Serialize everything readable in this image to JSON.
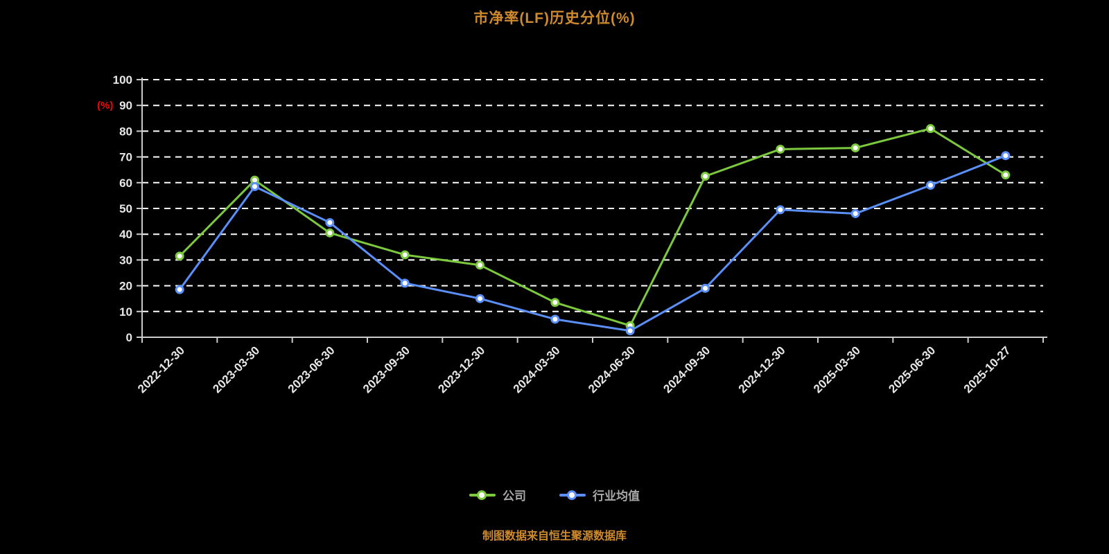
{
  "title": "市净率(LF)历史分位(%)",
  "y_axis_unit": "(%)",
  "caption": "制图数据来自恒生聚源数据库",
  "colors": {
    "background": "#000000",
    "title": "#CE8A2D",
    "caption": "#CE8A2D",
    "axis": "#CCCCCC",
    "tick_label": "#E8E8E8",
    "grid": "#FFFFFF",
    "unit_label": "#FF0000",
    "legend_text": "#A8A8A8",
    "series_company": "#7CC93F",
    "series_industry": "#5B8FF9"
  },
  "chart_data": {
    "type": "line",
    "title": "市净率(LF)历史分位(%)",
    "xlabel": "",
    "ylabel": "(%)",
    "ylim": [
      0,
      100
    ],
    "y_ticks": [
      0,
      10,
      20,
      30,
      40,
      50,
      60,
      70,
      80,
      90,
      100
    ],
    "grid": "dashed",
    "legend_position": "bottom",
    "categories": [
      "2022-12-30",
      "2023-03-30",
      "2023-06-30",
      "2023-09-30",
      "2023-12-30",
      "2024-03-30",
      "2024-06-30",
      "2024-09-30",
      "2024-12-30",
      "2025-03-30",
      "2025-06-30",
      "2025-10-27"
    ],
    "series": [
      {
        "name": "公司",
        "color": "#7CC93F",
        "values": [
          31.5,
          61,
          40.5,
          32,
          28,
          13.5,
          4.5,
          62.5,
          73,
          73.5,
          81,
          63
        ]
      },
      {
        "name": "行业均值",
        "color": "#5B8FF9",
        "values": [
          18.5,
          58.5,
          44.5,
          21,
          15,
          7,
          2.5,
          19,
          49.5,
          48,
          59,
          70.5
        ]
      }
    ]
  }
}
